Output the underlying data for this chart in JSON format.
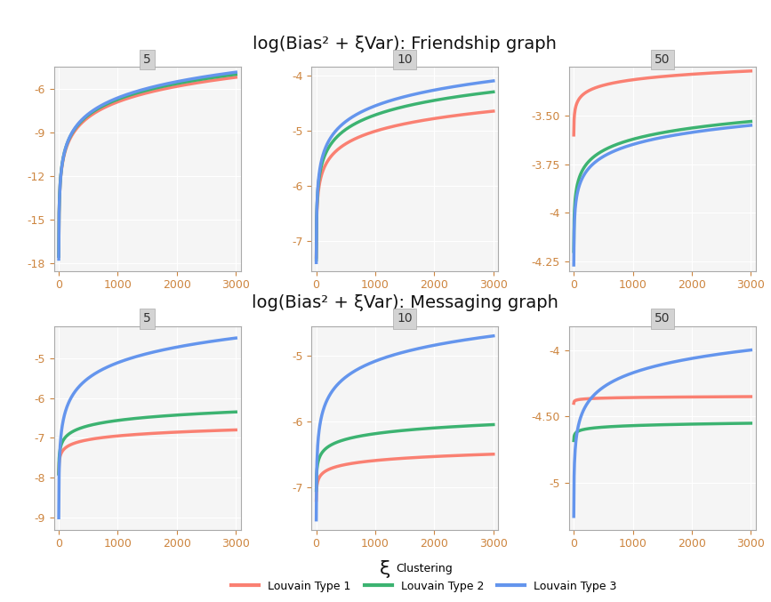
{
  "title_friendship": "log(Bias² + ξVar): Friendship graph",
  "title_messaging": "log(Bias² + ξVar): Messaging graph",
  "xlabel": "ξ",
  "panel_labels": [
    "5",
    "10",
    "50"
  ],
  "colors": {
    "type1": "#FA8072",
    "type2": "#3CB371",
    "type3": "#6495ED"
  },
  "legend_title": "Clustering",
  "legend_labels": [
    "Louvain Type 1",
    "Louvain Type 2",
    "Louvain Type 3"
  ],
  "background_color": "#ffffff",
  "panel_bg": "#f5f5f5",
  "grid_color": "#ffffff",
  "axis_color": "#CD853F",
  "title_fontsize": 14,
  "label_fontsize": 10,
  "tick_fontsize": 9
}
